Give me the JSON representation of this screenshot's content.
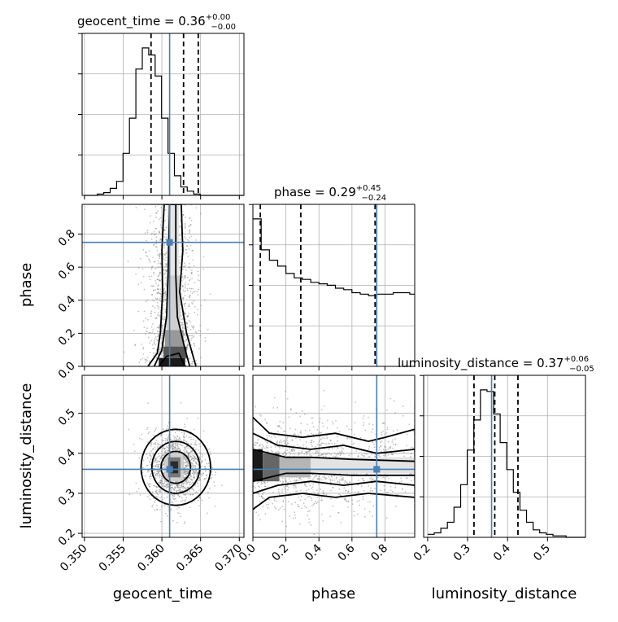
{
  "chart_data": {
    "type": "corner",
    "parameters": [
      "geocent_time",
      "phase",
      "luminosity_distance"
    ],
    "titles": {
      "geocent_time": {
        "name": "geocent_time",
        "median": "0.36",
        "plus": "+0.00",
        "minus": "−0.00"
      },
      "phase": {
        "name": "phase",
        "median": "0.29",
        "plus": "+0.45",
        "minus": "−0.24"
      },
      "luminosity_distance": {
        "name": "luminosity_distance",
        "median": "0.37",
        "plus": "+0.06",
        "minus": "−0.05"
      }
    },
    "ranges": {
      "geocent_time": [
        0.3497,
        0.3706
      ],
      "phase": [
        0.0,
        0.98
      ],
      "luminosity_distance": [
        0.19,
        0.595
      ]
    },
    "ticks": {
      "geocent_time": [
        0.35,
        0.355,
        0.36,
        0.365,
        0.37
      ],
      "phase": [
        0.0,
        0.2,
        0.4,
        0.6,
        0.8
      ],
      "luminosity_distance": [
        0.2,
        0.3,
        0.4,
        0.5
      ]
    },
    "tick_labels": {
      "geocent_time": [
        "0.350",
        "0.355",
        "0.360",
        "0.365",
        "0.370"
      ],
      "phase": [
        "0.0",
        "0.2",
        "0.4",
        "0.6",
        "0.8"
      ],
      "luminosity_distance": [
        "0.2",
        "0.3",
        "0.4",
        "0.5"
      ]
    },
    "truths": {
      "geocent_time": 0.361,
      "phase": 0.75,
      "luminosity_distance": 0.36
    },
    "quantiles": {
      "geocent_time": [
        0.3586,
        0.3628,
        0.3647
      ],
      "phase": [
        0.045,
        0.29,
        0.74
      ],
      "luminosity_distance": [
        0.316,
        0.368,
        0.426
      ]
    },
    "histograms": {
      "geocent_time": {
        "edges_start": 0.35,
        "bin_width": 0.00083,
        "counts": [
          0,
          0,
          1,
          2,
          5,
          10,
          30,
          55,
          90,
          105,
          100,
          85,
          55,
          30,
          14,
          6,
          3,
          1,
          0,
          0,
          0,
          0,
          0,
          0,
          0
        ]
      },
      "phase": {
        "edges_start": 0.0,
        "bin_width": 0.05,
        "counts": [
          100,
          79,
          72,
          68,
          63,
          60,
          59,
          57,
          56,
          55,
          53,
          52,
          50,
          49,
          48,
          49,
          49,
          50,
          50,
          49
        ]
      },
      "luminosity_distance": {
        "edges_start": 0.2,
        "bin_width": 0.0165,
        "counts": [
          2,
          3,
          6,
          10,
          20,
          35,
          58,
          78,
          98,
          97,
          82,
          63,
          45,
          30,
          18,
          10,
          5,
          3,
          2,
          1,
          1,
          0,
          0,
          0
        ]
      }
    },
    "grid": true,
    "cmap": "greys",
    "truth_color": "#4a7fb5"
  }
}
